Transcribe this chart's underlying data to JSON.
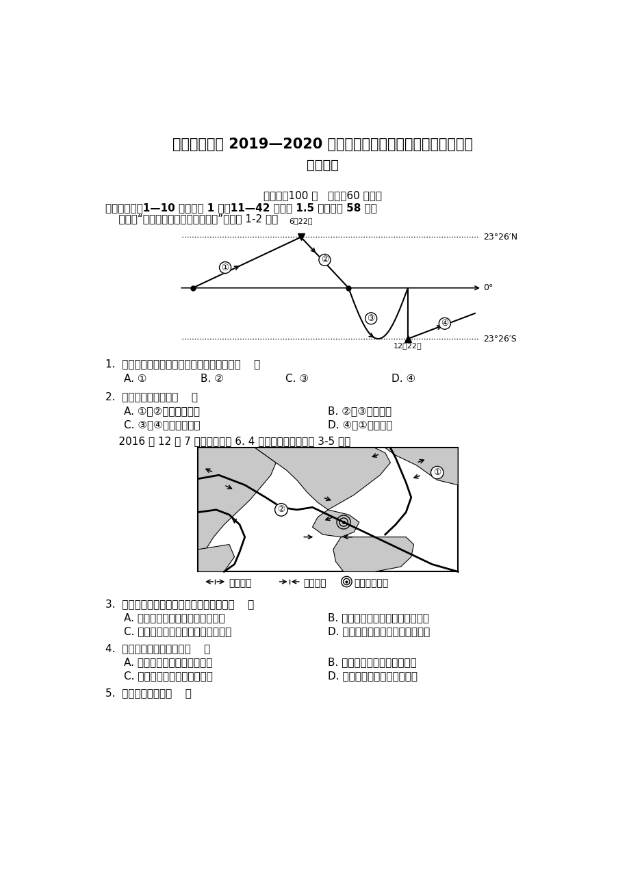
{
  "bg_color": "#ffffff",
  "title1": "天水一中高一 2019—2020 学年度第一学期第三学段（期末）考试",
  "title2": "地理试题",
  "subtitle": "（满分：100 分   时间：60 分钟）",
  "section1": "一、选择题（1—10 题每小题 1 分，11—42 每小题 1.5 分，共计 58 分）",
  "instruction1": "    读下图“太阳直射点回归运动示意图”，回答 1-2 题。",
  "q1": "1.  我国每年国庆时，太阳直射点最接近图中（    ）",
  "q1_opts": [
    "A. ①",
    "B. ②",
    "C. ③",
    "D. ④"
  ],
  "q2": "2.  图中地球公转速度（    ）",
  "q2_opts_col1": [
    "A. ①到②先加快后变慢",
    "C. ③到④先变慢后变快"
  ],
  "q2_opts_col2": [
    "B. ②到③逐渐加快",
    "D. ④到①逐渐变快"
  ],
  "instruction2": "    2016 年 12 月 7 日，某地发生 6. 4 级地震。读图，完成 3-5 题。",
  "q3": "3.  据地震发生地点判断，这次地震发生在（    ）",
  "q3_opts_col1": [
    "A. 亚欧板块与太平洋板块的交界处",
    "C. 太平洋板块与印度洋板块的交界处"
  ],
  "q3_opts_col2": [
    "B. 亚欧板块与印度洋板块的交界处",
    "D. 亚欧板块与大西洋板块的交界处"
  ],
  "q4": "4.  此次地震发生时，当地（    ）",
  "q4_opts_col1": [
    "A. 人们先感觉到地面左右摇晃",
    "C. 气候正处于高温晴朗的时期"
  ],
  "q4_opts_col2": [
    "B. 人们先感觉到地面上下震动",
    "D. 气候正处于寒冷干燥的时期"
  ],
  "q5": "5.  据图可判断出：（    ）"
}
